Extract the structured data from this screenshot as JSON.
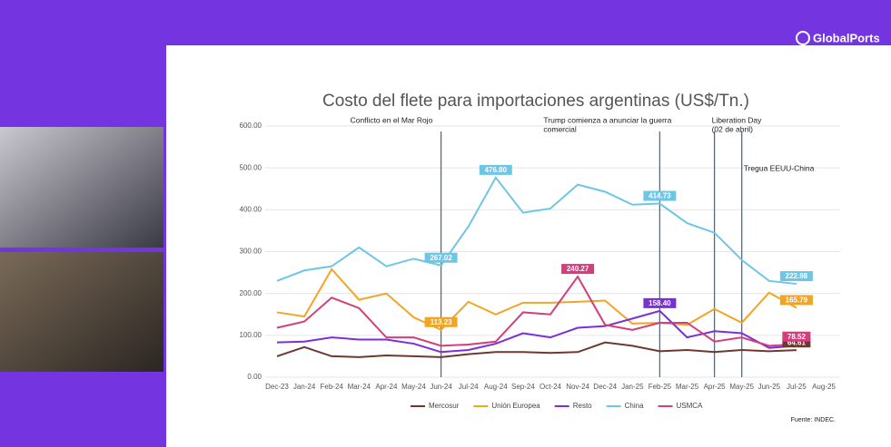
{
  "brand": "GlobalPorts",
  "chart_data": {
    "type": "line",
    "title": "Costo del flete para importaciones argentinas (US$/Tn.)",
    "source": "Fuente: INDEC.",
    "categories": [
      "Dec-23",
      "Jan-24",
      "Feb-24",
      "Mar-24",
      "Apr-24",
      "May-24",
      "Jun-24",
      "Jul-24",
      "Aug-24",
      "Sep-24",
      "Oct-24",
      "Nov-24",
      "Dec-24",
      "Jan-25",
      "Feb-25",
      "Mar-25",
      "Apr-25",
      "May-25",
      "Jun-25",
      "Jul-25",
      "Aug-25"
    ],
    "ylim": [
      0,
      600
    ],
    "yticks": [
      {
        "value": 0,
        "label": "0.00"
      },
      {
        "value": 100,
        "label": "100.00"
      },
      {
        "value": 200,
        "label": "200.00"
      },
      {
        "value": 300,
        "label": "300.00"
      },
      {
        "value": 400,
        "label": "400.00"
      },
      {
        "value": 500,
        "label": "500.00"
      },
      {
        "value": 600,
        "label": "600.00"
      }
    ],
    "grid": true,
    "series": [
      {
        "name": "Mercosur",
        "color": "#6b3a2e",
        "values": [
          50,
          72,
          50,
          48,
          52,
          50,
          48,
          55,
          60,
          60,
          58,
          60,
          83,
          75,
          62,
          65,
          60,
          65,
          62,
          64.61,
          null
        ],
        "value_labels": [
          null,
          null,
          null,
          null,
          null,
          null,
          null,
          null,
          null,
          null,
          null,
          null,
          null,
          null,
          null,
          null,
          null,
          null,
          null,
          "64.61",
          null
        ]
      },
      {
        "name": "Unión Europea",
        "color": "#f0a524",
        "values": [
          155,
          145,
          258,
          185,
          200,
          143,
          113.23,
          180,
          150,
          178,
          178,
          180,
          183,
          128,
          130,
          125,
          163,
          130,
          202,
          165.79,
          null
        ],
        "value_labels": [
          null,
          null,
          null,
          null,
          null,
          null,
          "113.23",
          null,
          null,
          null,
          null,
          null,
          null,
          null,
          null,
          null,
          null,
          null,
          null,
          "165.79",
          null
        ]
      },
      {
        "name": "Resto",
        "color": "#7b2fd6",
        "values": [
          83,
          85,
          95,
          90,
          90,
          80,
          60,
          65,
          80,
          105,
          95,
          118,
          122,
          140,
          158.4,
          95,
          110,
          105,
          70,
          75,
          null
        ],
        "value_labels": [
          null,
          null,
          null,
          null,
          null,
          null,
          null,
          null,
          null,
          null,
          null,
          null,
          null,
          null,
          "158.40",
          null,
          null,
          null,
          null,
          null,
          null
        ]
      },
      {
        "name": "China",
        "color": "#6ec6e6",
        "values": [
          230,
          255,
          265,
          310,
          265,
          283,
          267.02,
          360,
          476.8,
          393,
          403,
          460,
          443,
          412,
          414.73,
          368,
          345,
          280,
          230,
          222.98,
          null
        ],
        "value_labels": [
          null,
          null,
          null,
          null,
          null,
          null,
          "267.02",
          null,
          "476.80",
          null,
          null,
          null,
          null,
          null,
          "414.73",
          null,
          null,
          null,
          null,
          "222.98",
          null
        ]
      },
      {
        "name": "USMCA",
        "color": "#d23f7c",
        "values": [
          118,
          133,
          190,
          165,
          95,
          95,
          75,
          78,
          85,
          155,
          150,
          240.27,
          125,
          113,
          130,
          130,
          85,
          95,
          75,
          78.52,
          null
        ],
        "value_labels": [
          null,
          null,
          null,
          null,
          null,
          null,
          null,
          null,
          null,
          null,
          null,
          240.27,
          null,
          null,
          null,
          null,
          null,
          null,
          null,
          "78.52",
          null
        ]
      }
    ],
    "annotations": [
      {
        "at": "Jun-24",
        "lines": [
          "Conflicto en el Mar Rojo"
        ]
      },
      {
        "at": "Feb-25",
        "lines": [
          "Trump comienza a anunciar la guerra",
          "comercial"
        ]
      },
      {
        "at": "Apr-25",
        "lines": [
          "Liberation Day",
          "(02 de abril)"
        ]
      },
      {
        "at": "May-25",
        "lines": [
          "Tregua EEUU-China"
        ]
      }
    ]
  }
}
